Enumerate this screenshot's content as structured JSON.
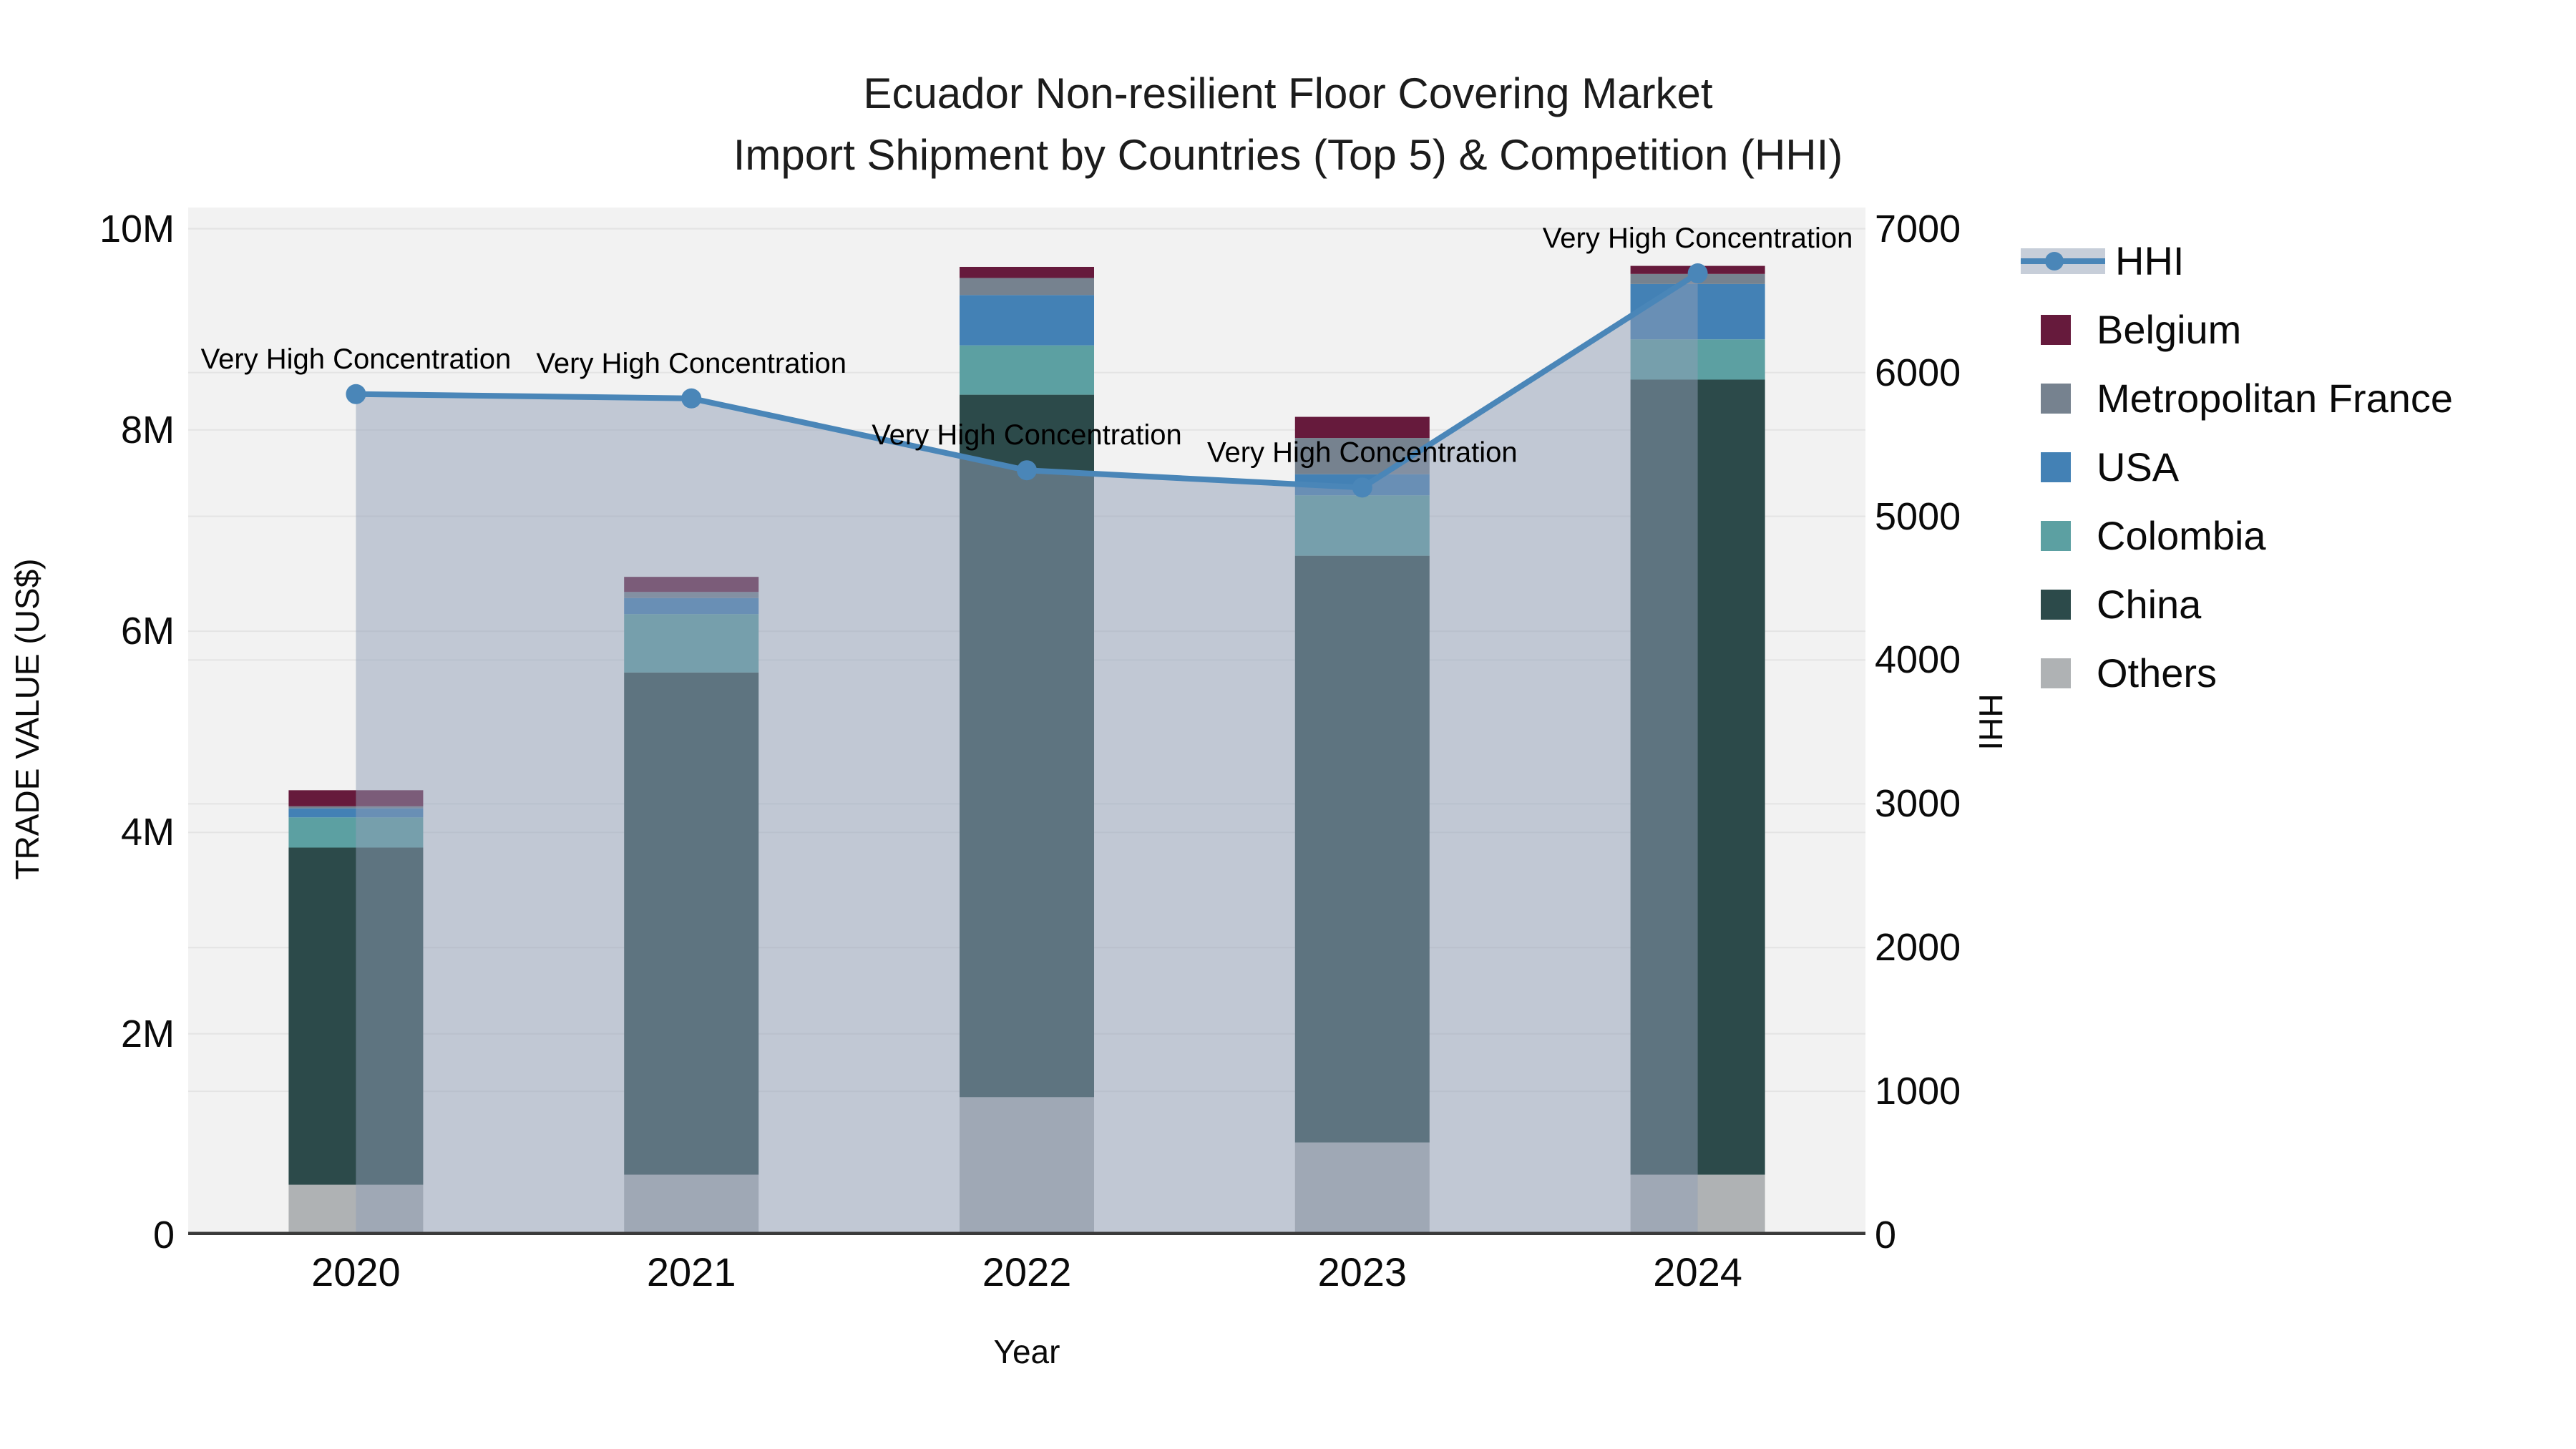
{
  "title": {
    "line1": "Ecuador Non-resilient Floor Covering Market",
    "line2": "Import Shipment by Countries (Top 5) & Competition (HHI)"
  },
  "axis_titles": {
    "left": "TRADE VALUE (US$)",
    "right": "HHI",
    "bottom": "Year"
  },
  "colors": {
    "belgium": "#661a3c",
    "metropolitan_france": "#76828f",
    "usa": "#4381b5",
    "colombia": "#5ca0a2",
    "china": "#2c4a4a",
    "others": "#afb2b4",
    "hhi_line": "#4a86b8",
    "hhi_fill": "rgba(144,158,181,0.5)",
    "plot_bg": "#f2f2f2",
    "grid": "#e4e4e4",
    "axis_line": "#3a3a3a"
  },
  "legend": [
    "HHI",
    "Belgium",
    "Metropolitan France",
    "USA",
    "Colombia",
    "China",
    "Others"
  ],
  "chart_data": {
    "type": "bar",
    "subtype": "stacked-bars-with-line",
    "categories": [
      "2020",
      "2021",
      "2022",
      "2023",
      "2024"
    ],
    "series": [
      {
        "name": "Belgium",
        "color_key": "belgium",
        "values": [
          160000,
          150000,
          110000,
          210000,
          80000
        ]
      },
      {
        "name": "Metropolitan France",
        "color_key": "metropolitan_france",
        "values": [
          20000,
          60000,
          170000,
          360000,
          100000
        ]
      },
      {
        "name": "USA",
        "color_key": "usa",
        "values": [
          90000,
          160000,
          500000,
          210000,
          550000
        ]
      },
      {
        "name": "Colombia",
        "color_key": "colombia",
        "values": [
          300000,
          580000,
          490000,
          600000,
          400000
        ]
      },
      {
        "name": "China",
        "color_key": "china",
        "values": [
          3350000,
          4990000,
          6980000,
          5830000,
          7900000
        ]
      },
      {
        "name": "Others",
        "color_key": "others",
        "values": [
          500000,
          600000,
          1370000,
          920000,
          600000
        ]
      }
    ],
    "line_series": {
      "name": "HHI",
      "values": [
        5850,
        5820,
        5320,
        5200,
        6690
      ],
      "annotations": [
        "Very High Concentration",
        "Very High Concentration",
        "Very High Concentration",
        "Very High Concentration",
        "Very High Concentration"
      ]
    },
    "title": "Ecuador Non-resilient Floor Covering Market — Import Shipment by Countries (Top 5) & Competition (HHI)",
    "xlabel": "Year",
    "ylabel_left": "TRADE VALUE (US$)",
    "ylabel_right": "HHI",
    "axes": {
      "left_max": 10210000,
      "right_max": 7148,
      "left_ticks": {
        "labels": [
          "0",
          "2M",
          "4M",
          "6M",
          "8M",
          "10M"
        ],
        "values": [
          0,
          2000000,
          4000000,
          6000000,
          8000000,
          10000000
        ]
      },
      "right_ticks": {
        "labels": [
          "0",
          "1000",
          "2000",
          "3000",
          "4000",
          "5000",
          "6000",
          "7000"
        ],
        "values": [
          0,
          1000,
          2000,
          3000,
          4000,
          5000,
          6000,
          7000
        ]
      },
      "grid": true,
      "legend_position": "right"
    }
  }
}
